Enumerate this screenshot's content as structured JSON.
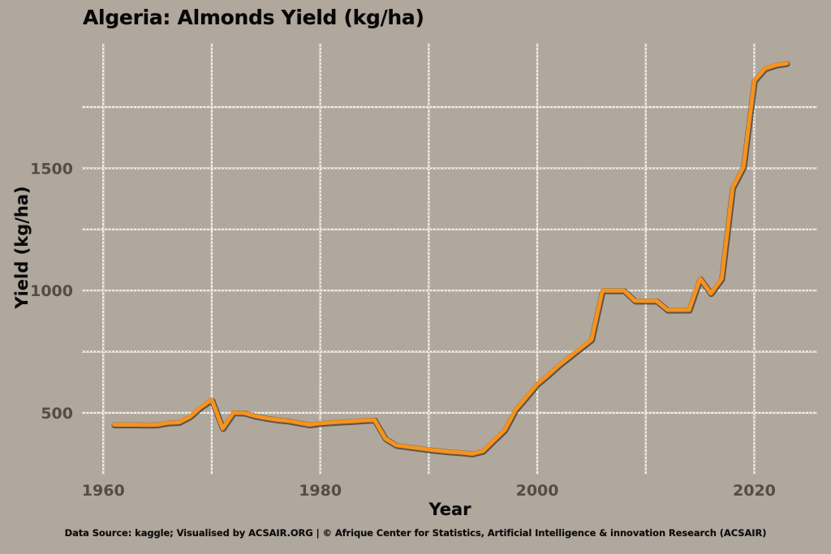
{
  "title": "Algeria: Almonds Yield (kg/ha)",
  "footer": "Data Source: kaggle; Visualised by ACSAIR.ORG | © Afrique Center for Statistics, Artificial Intelligence & innovation Research (ACSAIR)",
  "colors": {
    "background": "#b1a89d",
    "line": "#f6921e",
    "line_edge": "#45403a",
    "grid": "#f3f1ed",
    "grid_speckle": "#59544d",
    "text": "#0a0a0a",
    "tick_text": "#524e47"
  },
  "chart_data": {
    "type": "line",
    "title": "Algeria: Almonds Yield (kg/ha)",
    "xlabel": "Year",
    "ylabel": "Yield (kg/ha)",
    "xlim": [
      1958,
      2025.8
    ],
    "ylim": [
      248,
      2012
    ],
    "grid": true,
    "legend": false,
    "x_gridlines": [
      1960,
      1970,
      1980,
      1990,
      2000,
      2010,
      2020
    ],
    "x_tick_labels": [
      1960,
      1980,
      2000,
      2020
    ],
    "y_gridlines": [
      500,
      750,
      1000,
      1250,
      1500,
      1750
    ],
    "y_tick_labels": [
      500,
      1000,
      1500
    ],
    "series": [
      {
        "name": "Almonds yield (kg/ha)",
        "x": [
          1961,
          1962,
          1963,
          1964,
          1965,
          1966,
          1967,
          1968,
          1969,
          1970,
          1971,
          1972,
          1973,
          1974,
          1975,
          1976,
          1977,
          1978,
          1979,
          1980,
          1981,
          1982,
          1983,
          1984,
          1985,
          1986,
          1987,
          1988,
          1989,
          1990,
          1991,
          1992,
          1993,
          1994,
          1995,
          1996,
          1997,
          1998,
          1999,
          2000,
          2001,
          2002,
          2003,
          2004,
          2005,
          2006,
          2007,
          2008,
          2009,
          2010,
          2011,
          2012,
          2013,
          2014,
          2015,
          2016,
          2017,
          2018,
          2019,
          2020,
          2021,
          2022,
          2023
        ],
        "values": [
          452,
          452,
          452,
          451,
          452,
          460,
          462,
          485,
          524,
          554,
          436,
          501,
          500,
          487,
          479,
          472,
          468,
          460,
          452,
          458,
          461,
          464,
          466,
          469,
          471,
          395,
          368,
          362,
          356,
          350,
          345,
          341,
          338,
          333,
          344,
          388,
          430,
          513,
          565,
          618,
          655,
          695,
          730,
          765,
          800,
          1000,
          1000,
          1000,
          958,
          958,
          958,
          921,
          921,
          921,
          1049,
          988,
          1049,
          1420,
          1505,
          1858,
          1908,
          1922,
          1929
        ]
      }
    ]
  }
}
